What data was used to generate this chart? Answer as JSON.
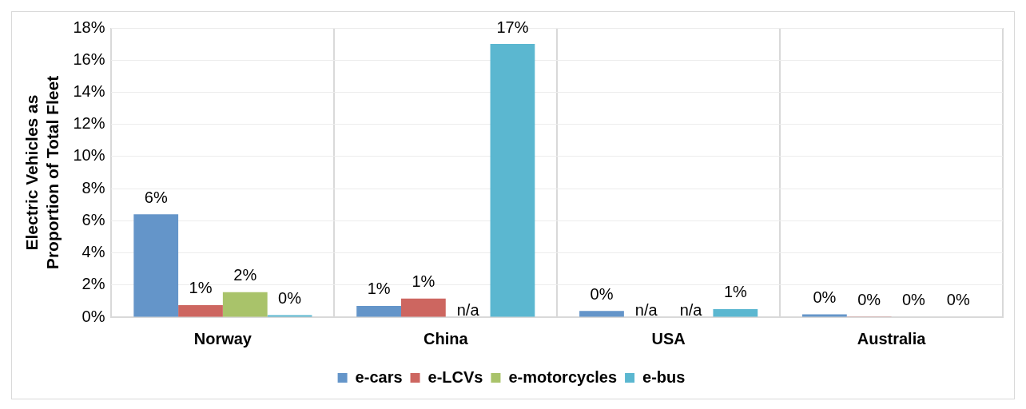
{
  "chart_data": {
    "type": "bar",
    "ylabel": "Electric Vehicles as Proportion of Total Fleet",
    "categories": [
      "Norway",
      "China",
      "USA",
      "Australia"
    ],
    "series": [
      {
        "name": "e-cars",
        "color": "#6495c9",
        "values": [
          6.4,
          0.7,
          0.38,
          0.18
        ],
        "value_labels": [
          "6%",
          "1%",
          "0%",
          "0%"
        ]
      },
      {
        "name": "e-LCVs",
        "color": "#cd6660",
        "values": [
          0.75,
          1.15,
          null,
          0.01
        ],
        "value_labels": [
          "1%",
          "1%",
          "n/a",
          "0%"
        ]
      },
      {
        "name": "e-motorcycles",
        "color": "#a9c36a",
        "values": [
          1.55,
          null,
          null,
          0.03
        ],
        "value_labels": [
          "2%",
          "n/a",
          "n/a",
          "0%"
        ]
      },
      {
        "name": "e-bus",
        "color": "#5bb7d0",
        "values": [
          0.12,
          17,
          0.5,
          0.02
        ],
        "value_labels": [
          "0%",
          "17%",
          "1%",
          "0%"
        ]
      }
    ],
    "ylim": [
      0,
      18
    ],
    "yticks": [
      {
        "value": 0,
        "label": "0%"
      },
      {
        "value": 2,
        "label": "2%"
      },
      {
        "value": 4,
        "label": "4%"
      },
      {
        "value": 6,
        "label": "6%"
      },
      {
        "value": 8,
        "label": "8%"
      },
      {
        "value": 10,
        "label": "10%"
      },
      {
        "value": 12,
        "label": "12%"
      },
      {
        "value": 14,
        "label": "14%"
      },
      {
        "value": 16,
        "label": "16%"
      },
      {
        "value": 18,
        "label": "18%"
      }
    ],
    "grid": true,
    "legend": "bottom"
  }
}
